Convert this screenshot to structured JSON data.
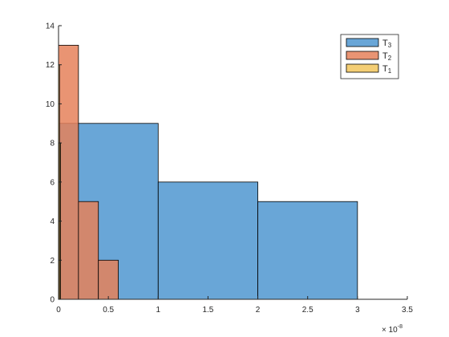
{
  "chart_data": {
    "type": "bar",
    "subtype": "overlaid-histogram",
    "title": "",
    "xlabel": "",
    "ylabel": "",
    "xlim": [
      0,
      3.5e-08
    ],
    "ylim": [
      0,
      14
    ],
    "x_exponent_label": "× 10",
    "x_exponent_power": "-8",
    "xticks": [
      0,
      0.5,
      1,
      1.5,
      2,
      2.5,
      3,
      3.5
    ],
    "xtick_labels": [
      "0",
      "0.5",
      "1",
      "1.5",
      "2",
      "2.5",
      "3",
      "3.5"
    ],
    "yticks": [
      0,
      2,
      4,
      6,
      8,
      10,
      12,
      14
    ],
    "ytick_labels": [
      "0",
      "2",
      "4",
      "6",
      "8",
      "10",
      "12",
      "14"
    ],
    "grid": false,
    "legend_position": "top-right",
    "series": [
      {
        "name": "T3",
        "legend_base": "T",
        "legend_sub": "3",
        "color": "#4f97d0",
        "bin_edges": [
          0,
          1e-08,
          2e-08,
          3e-08
        ],
        "counts": [
          9,
          6,
          5
        ]
      },
      {
        "name": "T2",
        "legend_base": "T",
        "legend_sub": "2",
        "color": "#e5815b",
        "bin_edges": [
          0,
          2e-09,
          4e-09,
          6e-09
        ],
        "counts": [
          13,
          5,
          2
        ]
      },
      {
        "name": "T1",
        "legend_base": "T",
        "legend_sub": "1",
        "color": "#f2c55c",
        "bin_edges": [
          0,
          1e-10,
          2e-10,
          3e-10
        ],
        "counts": [
          12,
          8,
          0
        ]
      }
    ]
  }
}
